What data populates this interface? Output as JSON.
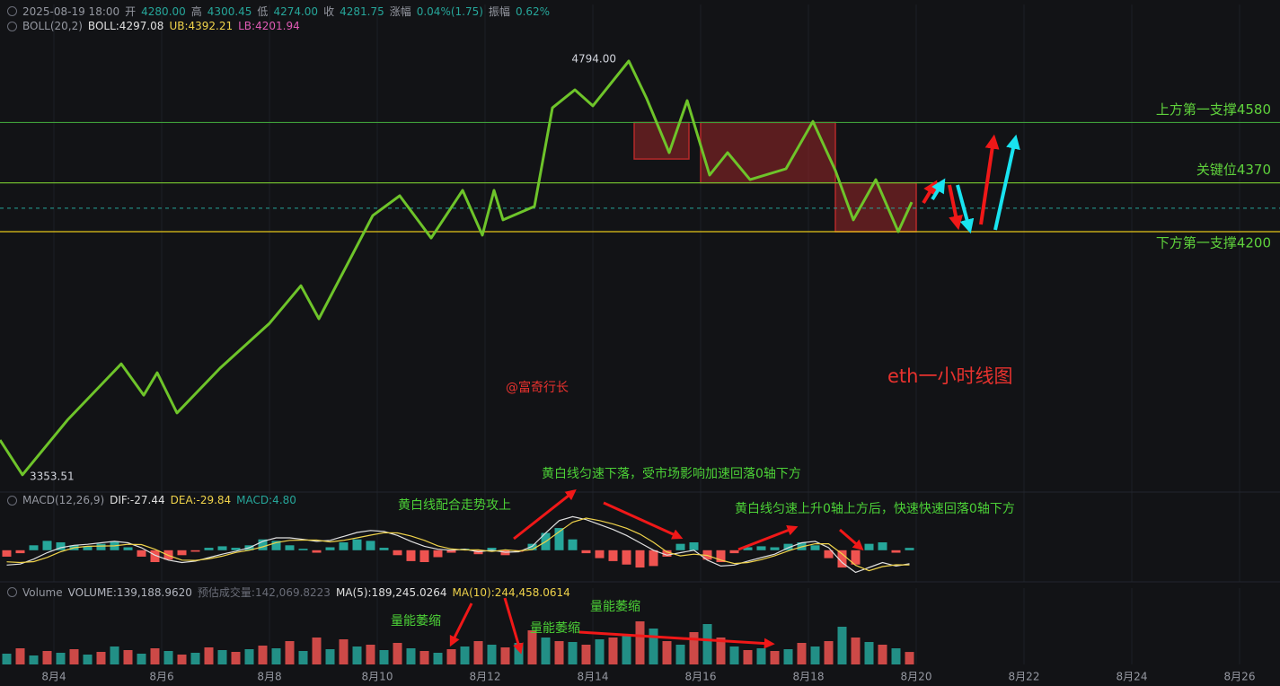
{
  "header": {
    "datetime": "2025-08-19 18:00",
    "fields": [
      {
        "label": "开",
        "value": "4280.00"
      },
      {
        "label": "高",
        "value": "4300.45"
      },
      {
        "label": "低",
        "value": "4274.00"
      },
      {
        "label": "收",
        "value": "4281.75"
      },
      {
        "label": "涨幅",
        "value": "0.04%(1.75)"
      },
      {
        "label": "振幅",
        "value": "0.62%"
      }
    ]
  },
  "chart_data": [
    {
      "type": "line",
      "xlim": [
        3,
        26.75
      ],
      "ylim": [
        3303,
        4944
      ],
      "legend": [
        {
          "text": "BOLL(20,2)",
          "color": "#9598a1"
        },
        {
          "text": "BOLL:4297.08",
          "color": "#e0e0e0"
        },
        {
          "text": "UB:4392.21",
          "color": "#f0d34a"
        },
        {
          "text": "LB:4201.94",
          "color": "#e05bb5"
        }
      ],
      "x": [
        3.0,
        3.417,
        4.25,
        5.25,
        5.667,
        5.917,
        6.283,
        7.083,
        8.0,
        8.583,
        8.917,
        9.917,
        10.417,
        11.0,
        11.583,
        11.95,
        12.167,
        12.333,
        12.917,
        13.25,
        13.667,
        14.0,
        14.667,
        15.0,
        15.417,
        15.75,
        16.167,
        16.5,
        16.917,
        17.583,
        18.083,
        18.5,
        18.833,
        19.25,
        19.667,
        19.917
      ],
      "series": [
        {
          "color": "#6ec42a",
          "values": [
            3475,
            3353.51,
            3544,
            3740,
            3631,
            3709,
            3569,
            3725,
            3881,
            4012,
            3897,
            4256,
            4325,
            4178,
            4344,
            4188,
            4344,
            4241,
            4288,
            4631,
            4694,
            4638,
            4794,
            4663,
            4475,
            4656,
            4397,
            4475,
            4381,
            4419,
            4584,
            4413,
            4241,
            4381,
            4200,
            4303
          ],
          "value_labels": [
            null,
            "3353.51",
            null,
            null,
            null,
            null,
            null,
            null,
            null,
            null,
            null,
            null,
            null,
            null,
            null,
            null,
            null,
            null,
            null,
            null,
            null,
            null,
            "4794.00",
            null,
            null,
            null,
            null,
            null,
            null,
            null,
            null,
            null,
            null,
            null,
            null,
            null
          ]
        }
      ],
      "levels": [
        {
          "value": 4580,
          "label": "上方第一支撑4580",
          "color": "#3f9f3a"
        },
        {
          "value": 4370,
          "label": "关键位4370",
          "color": "#6fb82e"
        },
        {
          "value": 4200,
          "label": "下方第一支撑4200",
          "color": "#e6c619"
        }
      ],
      "level_label_color": "#5fd13c",
      "price_line": 4281.75,
      "price_line_color": "#26a69a",
      "zones": [
        {
          "x": [
            14.767,
            15.783
          ],
          "y": [
            4453,
            4580
          ]
        },
        {
          "x": [
            16.0,
            18.5
          ],
          "y": [
            4370,
            4580
          ]
        },
        {
          "x": [
            18.5,
            20.0
          ],
          "y": [
            4200,
            4370
          ]
        }
      ],
      "zone_color": "#b52a2a",
      "annotations": [
        "@富奇行长",
        "eth一小时线图"
      ]
    },
    {
      "type": "macd",
      "xlim": [
        3,
        26.75
      ],
      "ylim": [
        -64,
        96
      ],
      "legend": [
        {
          "text": "MACD(12,26,9)",
          "color": "#9598a1"
        },
        {
          "text": "DIF:-27.44",
          "color": "#e0e0e0"
        },
        {
          "text": "DEA:-29.84",
          "color": "#f0d34a"
        },
        {
          "text": "MACD:4.80",
          "color": "#26a69a"
        }
      ],
      "x": [
        3.125,
        3.375,
        3.625,
        3.875,
        4.125,
        4.375,
        4.625,
        4.875,
        5.125,
        5.375,
        5.625,
        5.875,
        6.125,
        6.375,
        6.625,
        6.875,
        7.125,
        7.375,
        7.625,
        7.875,
        8.125,
        8.375,
        8.625,
        8.875,
        9.125,
        9.375,
        9.625,
        9.875,
        10.125,
        10.375,
        10.625,
        10.875,
        11.125,
        11.375,
        11.625,
        11.875,
        12.125,
        12.375,
        12.625,
        12.875,
        13.125,
        13.375,
        13.625,
        13.875,
        14.125,
        14.375,
        14.625,
        14.875,
        15.125,
        15.375,
        15.625,
        15.875,
        16.125,
        16.375,
        16.625,
        16.875,
        17.125,
        17.375,
        17.625,
        17.875,
        18.125,
        18.375,
        18.625,
        18.875,
        19.125,
        19.375,
        19.625,
        19.875
      ],
      "series": [
        {
          "style": "bar",
          "color": "#26a69a",
          "negative_color": "#ef5350",
          "values": [
            -13,
            -6,
            10,
            19,
            16,
            10,
            8,
            13,
            18,
            6,
            -13,
            -24,
            -19,
            -10,
            -3,
            5,
            8,
            5,
            10,
            22,
            19,
            10,
            3,
            -5,
            6,
            16,
            22,
            19,
            5,
            -10,
            -22,
            -24,
            -14,
            -5,
            3,
            -8,
            5,
            -10,
            -3,
            13,
            35,
            45,
            22,
            -6,
            -16,
            -22,
            -29,
            -35,
            -32,
            -13,
            13,
            16,
            -19,
            -24,
            -6,
            6,
            8,
            6,
            13,
            16,
            10,
            -16,
            -35,
            -29,
            13,
            16,
            -5,
            4.8
          ]
        },
        {
          "style": "line",
          "color": "#e0e0e0",
          "values": [
            -30,
            -28,
            -18,
            -5,
            5,
            10,
            12,
            15,
            18,
            15,
            5,
            -10,
            -20,
            -25,
            -22,
            -15,
            -8,
            -2,
            5,
            18,
            25,
            25,
            22,
            18,
            20,
            28,
            36,
            40,
            38,
            30,
            18,
            8,
            2,
            0,
            2,
            -3,
            0,
            -4,
            -3,
            8,
            35,
            60,
            68,
            62,
            52,
            42,
            30,
            15,
            0,
            -10,
            -5,
            0,
            -20,
            -32,
            -30,
            -22,
            -15,
            -8,
            5,
            15,
            18,
            5,
            -25,
            -45,
            -35,
            -25,
            -32,
            -27.44
          ]
        },
        {
          "style": "line",
          "color": "#f0d34a",
          "values": [
            -23.5,
            -25,
            -23,
            -14.5,
            -3,
            5,
            8,
            8.5,
            9,
            12,
            11.5,
            2,
            -10.5,
            -20,
            -20.5,
            -17.5,
            -12,
            -4.5,
            0,
            7,
            15.5,
            20,
            20.5,
            20.5,
            17,
            20,
            25,
            30.5,
            35.5,
            35,
            29,
            20,
            9,
            2.5,
            0.5,
            1,
            -2.5,
            1,
            -1.5,
            1.5,
            17.5,
            37.5,
            57,
            65,
            60,
            53,
            44.5,
            32.5,
            16,
            -3.5,
            -11.5,
            -8,
            -10.5,
            -20,
            -27,
            -25,
            -19,
            -11,
            -1.5,
            7,
            13,
            13,
            -7.5,
            -30.5,
            -41.5,
            -33,
            -29.5,
            -29.84
          ]
        }
      ],
      "annotations": [
        "黄白线配合走势攻上",
        "黄白线匀速下落，受市场影响加速回落0轴下方",
        "黄白线匀速上升0轴上方后，快速快速回落0轴下方"
      ]
    },
    {
      "type": "bar",
      "xlim": [
        3,
        26.75
      ],
      "ylim": [
        0,
        700000
      ],
      "legend": [
        {
          "text": "Volume",
          "color": "#9598a1"
        },
        {
          "text": "VOLUME:139,188.9620",
          "color": "#b2b5be"
        },
        {
          "text": "预估成交量:142,069.8223",
          "color": "#6a6d78"
        },
        {
          "text": "MA(5):189,245.0264",
          "color": "#e0e0e0"
        },
        {
          "text": "MA(10):244,458.0614",
          "color": "#f0d34a"
        }
      ],
      "x": [
        3.125,
        3.375,
        3.625,
        3.875,
        4.125,
        4.375,
        4.625,
        4.875,
        5.125,
        5.375,
        5.625,
        5.875,
        6.125,
        6.375,
        6.625,
        6.875,
        7.125,
        7.375,
        7.625,
        7.875,
        8.125,
        8.375,
        8.625,
        8.875,
        9.125,
        9.375,
        9.625,
        9.875,
        10.125,
        10.375,
        10.625,
        10.875,
        11.125,
        11.375,
        11.625,
        11.875,
        12.125,
        12.375,
        12.625,
        12.875,
        13.125,
        13.375,
        13.625,
        13.875,
        14.125,
        14.375,
        14.625,
        14.875,
        15.125,
        15.375,
        15.625,
        15.875,
        16.125,
        16.375,
        16.625,
        16.875,
        17.125,
        17.375,
        17.625,
        17.875,
        18.125,
        18.375,
        18.625,
        18.875,
        19.125,
        19.375,
        19.625,
        19.875
      ],
      "colors": [
        "#26a69a",
        "#ef5350"
      ],
      "values": [
        120000,
        180000,
        100000,
        150000,
        130000,
        170000,
        110000,
        140000,
        200000,
        160000,
        120000,
        180000,
        150000,
        110000,
        130000,
        190000,
        160000,
        140000,
        170000,
        210000,
        180000,
        260000,
        150000,
        300000,
        170000,
        280000,
        200000,
        220000,
        160000,
        240000,
        180000,
        150000,
        130000,
        170000,
        200000,
        260000,
        220000,
        190000,
        240000,
        380000,
        300000,
        260000,
        250000,
        220000,
        280000,
        300000,
        330000,
        480000,
        400000,
        260000,
        220000,
        360000,
        450000,
        300000,
        200000,
        160000,
        180000,
        150000,
        170000,
        240000,
        200000,
        260000,
        420000,
        300000,
        250000,
        220000,
        180000,
        139188.962
      ],
      "xticks": [
        {
          "value": 4,
          "label": "8月4"
        },
        {
          "value": 6,
          "label": "8月6"
        },
        {
          "value": 8,
          "label": "8月8"
        },
        {
          "value": 10,
          "label": "8月10"
        },
        {
          "value": 12,
          "label": "8月12"
        },
        {
          "value": 14,
          "label": "8月14"
        },
        {
          "value": 16,
          "label": "8月16"
        },
        {
          "value": 18,
          "label": "8月18"
        },
        {
          "value": 20,
          "label": "8月20"
        },
        {
          "value": 22,
          "label": "8月22"
        },
        {
          "value": 24,
          "label": "8月24"
        },
        {
          "value": 26,
          "label": "8月26"
        }
      ],
      "grid": true,
      "annotations": [
        "量能萎缩",
        "量能萎缩",
        "量能萎缩"
      ]
    }
  ]
}
